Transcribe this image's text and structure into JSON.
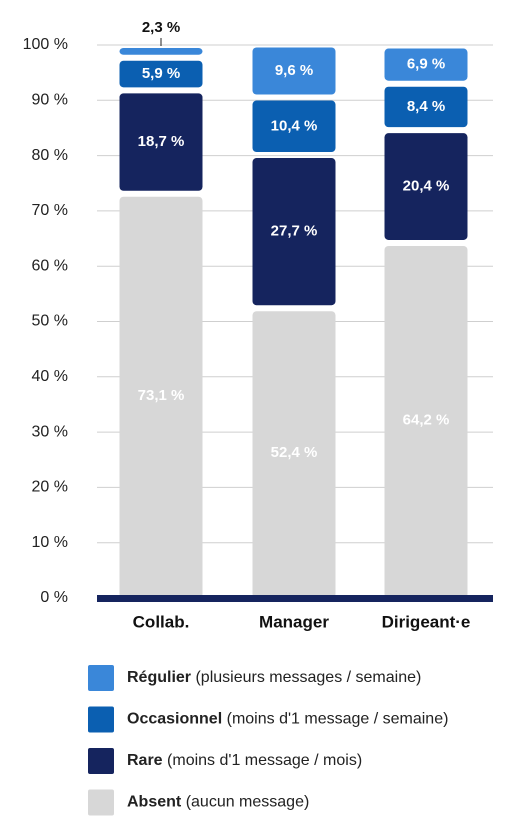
{
  "chart_data": {
    "type": "stacked-bar",
    "categories": [
      "Collab.",
      "Manager",
      "Dirigeant·e"
    ],
    "series": [
      {
        "name": "Régulier",
        "description": "(plusieurs messages / semaine)",
        "color": "#3a87d9",
        "values": [
          2.3,
          9.6,
          6.9
        ],
        "value_labels": [
          "2,3 %",
          "9,6 %",
          "6,9 %"
        ]
      },
      {
        "name": "Occasionnel",
        "description": "(moins d'1 message / semaine)",
        "color": "#0b5fb1",
        "values": [
          5.9,
          10.4,
          8.4
        ],
        "value_labels": [
          "5,9 %",
          "10,4 %",
          "8,4 %"
        ]
      },
      {
        "name": "Rare",
        "description": "(moins d'1 message / mois)",
        "color": "#15245e",
        "values": [
          18.7,
          27.7,
          20.4
        ],
        "value_labels": [
          "18,7 %",
          "27,7 %",
          "20,4 %"
        ]
      },
      {
        "name": "Absent",
        "description": "(aucun message)",
        "color": "#d7d7d7",
        "values": [
          73.1,
          52.4,
          64.2
        ],
        "value_labels": [
          "73,1 %",
          "52,4 %",
          "64,2 %"
        ]
      }
    ],
    "ylim": [
      0,
      100
    ],
    "yticks": [
      {
        "value": 0,
        "label": "0 %"
      },
      {
        "value": 10,
        "label": "10 %"
      },
      {
        "value": 20,
        "label": "20 %"
      },
      {
        "value": 30,
        "label": "30 %"
      },
      {
        "value": 40,
        "label": "40 %"
      },
      {
        "value": 50,
        "label": "50 %"
      },
      {
        "value": 60,
        "label": "60 %"
      },
      {
        "value": 70,
        "label": "70 %"
      },
      {
        "value": 80,
        "label": "80 %"
      },
      {
        "value": 90,
        "label": "90 %"
      },
      {
        "value": 100,
        "label": "100 %"
      }
    ],
    "grid": true
  }
}
